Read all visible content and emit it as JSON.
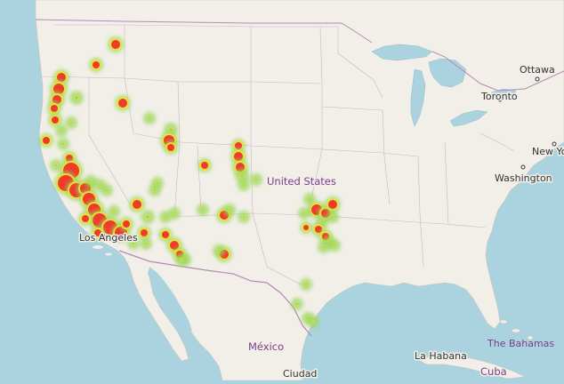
{
  "map": {
    "labels": {
      "united_states": "United States",
      "mexico": "México",
      "ciudad": "Ciudad",
      "los_angeles": "Los Angeles",
      "ottawa": "Ottawa",
      "toronto": "Toronto",
      "new_york": "New York",
      "washington": "Washington",
      "la_habana": "La Habana",
      "cuba": "Cuba",
      "the_bahamas": "The Bahamas"
    },
    "colors": {
      "water": "#aad3df",
      "land": "#f2efe9",
      "border": "#b48ab4",
      "heat_low": "#9bd65a",
      "heat_mid": "#e7e43a",
      "heat_high": "#ef3a2c"
    }
  }
}
